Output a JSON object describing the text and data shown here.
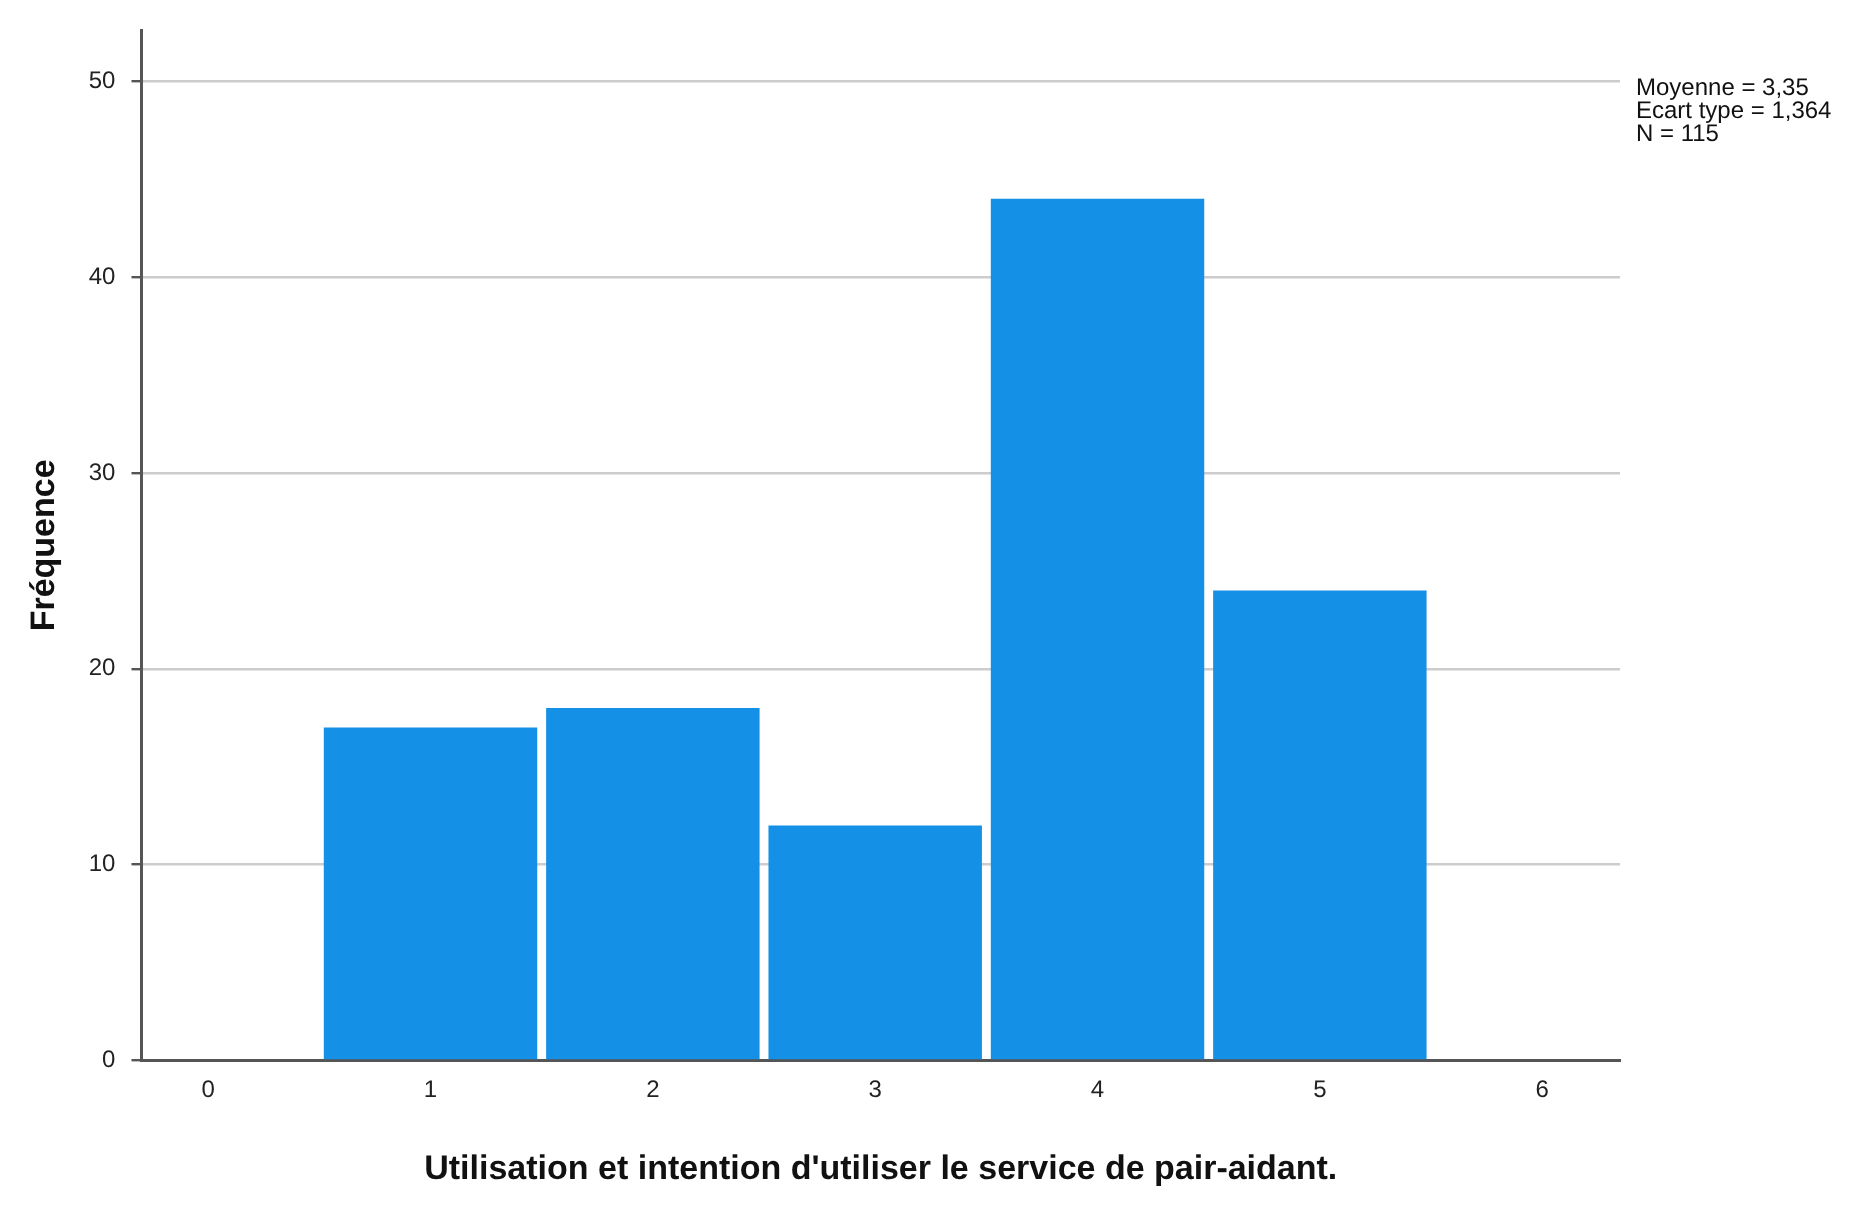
{
  "chart_data": {
    "type": "histogram",
    "xlabel": "Utilisation et intention d'utiliser le service de pair-aidant.",
    "ylabel": "Fréquence",
    "bins": [
      0.5,
      1.5,
      2.5,
      3.5,
      4.5,
      5.5
    ],
    "values": [
      17,
      18,
      12,
      44,
      24
    ],
    "color": "#1490e6",
    "xlim": [
      -0.3,
      6.35
    ],
    "xticks": [
      0,
      1,
      2,
      3,
      4,
      5,
      6
    ],
    "ylim": [
      0,
      52.6
    ],
    "yticks": [
      0,
      10,
      20,
      30,
      40,
      50
    ],
    "grid": "y",
    "legend": false,
    "annotations": [
      "Moyenne = 3,35",
      "Ecart type = 1,364",
      "N = 115"
    ]
  }
}
